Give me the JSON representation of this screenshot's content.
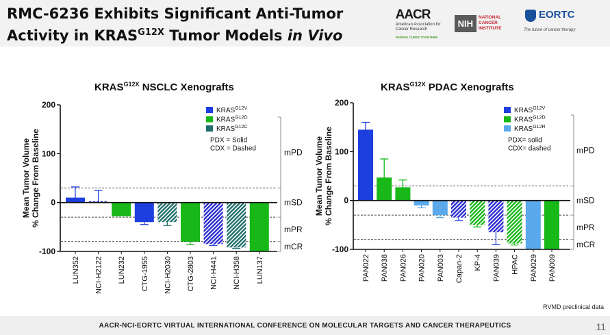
{
  "slide": {
    "title_line1": "RMC-6236 Exhibits Significant Anti-Tumor",
    "title_line2_pre": "Activity in KRAS",
    "title_line2_sup": "G12X",
    "title_line2_mid": " Tumor Models ",
    "title_line2_italic": "in Vivo",
    "footer": "AACR-NCI-EORTC VIRTUAL INTERNATIONAL CONFERENCE ON MOLECULAR TARGETS AND CANCER THERAPEUTICS",
    "page_number": "11",
    "note": "RVMD preclinical data"
  },
  "logos": {
    "aacr_word": "AACR",
    "aacr_sub": "American Association for Cancer Research",
    "aacr_tag": "FINDING CURES TOGETHER",
    "nih_box": "NIH",
    "nih_text": "NATIONAL CANCER INSTITUTE",
    "eortc_word": "EORTC",
    "eortc_tag": "The future of cancer therapy"
  },
  "colors": {
    "blue": "#1e3fe0",
    "green": "#18b818",
    "teal": "#1f6f6a",
    "light_blue": "#5aa9ec",
    "navy": "#2a2ad0"
  },
  "chart_data": [
    {
      "type": "bar",
      "title_pre": "KRAS",
      "title_sup": "G12X",
      "title_post": " NSCLC Xenografts",
      "ylabel_line1": "Mean Tumor Volume",
      "ylabel_line2": "% Change From Baseline",
      "ylim": [
        -100,
        200
      ],
      "yticks": [
        "200",
        "100",
        "0",
        "-100"
      ],
      "categories": [
        "LUN352",
        "NCI-H2122",
        "LUN232",
        "CTG-1955",
        "NCI-H2030",
        "CTG-2803",
        "NCI-H441",
        "NCI-H358",
        "LUN137"
      ],
      "values": [
        10,
        3,
        -28,
        -40,
        -40,
        -80,
        -85,
        -92,
        -100
      ],
      "errors": [
        22,
        22,
        0,
        5,
        7,
        6,
        3,
        2,
        0
      ],
      "variant": [
        "G12V",
        "G12V",
        "G12D",
        "G12V",
        "G12C",
        "G12D",
        "G12V",
        "G12C",
        "G12D"
      ],
      "model": [
        "PDX",
        "CDX",
        "PDX",
        "PDX",
        "CDX",
        "PDX",
        "CDX",
        "CDX",
        "PDX"
      ],
      "legend": [
        {
          "base": "KRAS",
          "sup": "G12V",
          "color": "#1e3fe0"
        },
        {
          "base": "KRAS",
          "sup": "G12D",
          "color": "#18b818"
        },
        {
          "base": "KRAS",
          "sup": "G12C",
          "color": "#1f6f6a"
        }
      ],
      "legend_note1": "PDX = Solid",
      "legend_note2": "CDX = Dashed",
      "reference_lines": [
        {
          "label": "mSD",
          "value": 30
        },
        {
          "label": "mSD",
          "value": -30
        },
        {
          "label": "mCR",
          "value": -80
        }
      ],
      "response_labels": [
        "mPD",
        "mSD",
        "mPR",
        "mCR"
      ]
    },
    {
      "type": "bar",
      "title_pre": "KRAS",
      "title_sup": "G12X",
      "title_post": " PDAC Xenografts",
      "ylabel_line1": "Mean Tumor Volume",
      "ylabel_line2": "% Change From Baseline",
      "ylim": [
        -100,
        200
      ],
      "yticks": [
        "200",
        "100",
        "0",
        "-100"
      ],
      "categories": [
        "PAN022",
        "PAN038",
        "PAN026",
        "PAN020",
        "PAN003",
        "Capan-2",
        "KP-4",
        "PAN039",
        "HPAC",
        "PAN029",
        "PAN009"
      ],
      "values": [
        145,
        47,
        27,
        -10,
        -30,
        -35,
        -50,
        -65,
        -88,
        -100,
        -100
      ],
      "errors": [
        15,
        38,
        15,
        5,
        5,
        6,
        4,
        25,
        3,
        0,
        0
      ],
      "variant": [
        "G12V",
        "G12D",
        "G12D",
        "G12R",
        "G12R",
        "G12V",
        "G12D",
        "G12V",
        "G12D",
        "G12R",
        "G12D"
      ],
      "model": [
        "PDX",
        "PDX",
        "PDX",
        "PDX",
        "PDX",
        "CDX",
        "CDX",
        "CDX",
        "CDX",
        "PDX",
        "PDX"
      ],
      "legend": [
        {
          "base": "KRAS",
          "sup": "G12V",
          "color": "#1e3fe0"
        },
        {
          "base": "KRAS",
          "sup": "G12D",
          "color": "#18b818"
        },
        {
          "base": "KRAS",
          "sup": "G12R",
          "color": "#5aa9ec"
        }
      ],
      "legend_note1": "PDX= solid",
      "legend_note2": "CDX= dashed",
      "reference_lines": [
        {
          "label": "mSD",
          "value": 30
        },
        {
          "label": "mSD",
          "value": -30
        },
        {
          "label": "mCR",
          "value": -80
        }
      ],
      "response_labels": [
        "mPD",
        "mSD",
        "mPR",
        "mCR"
      ]
    }
  ]
}
